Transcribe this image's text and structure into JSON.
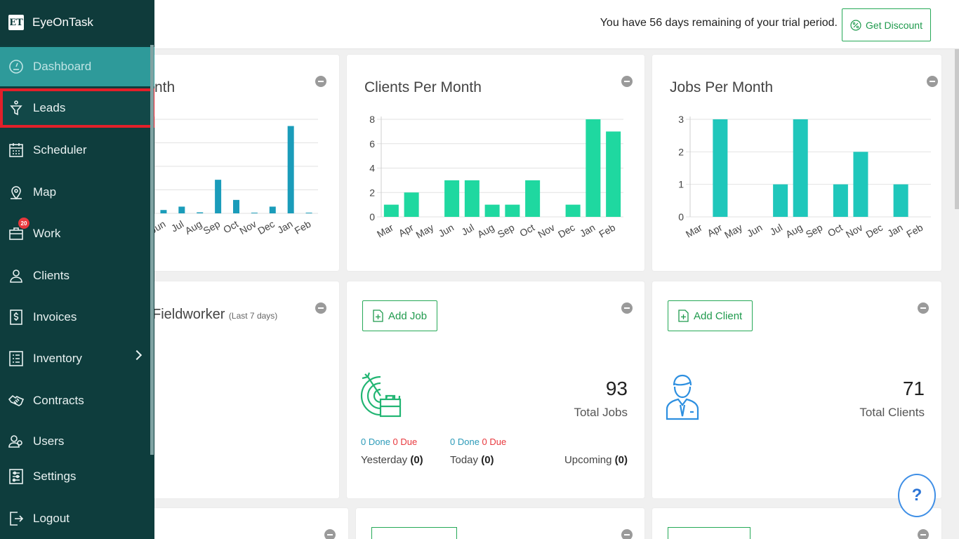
{
  "brand": {
    "logo": "ET",
    "name": "EyeOnTask"
  },
  "sidebar": {
    "items": [
      {
        "label": "Dashboard",
        "icon": "gauge-icon"
      },
      {
        "label": "Leads",
        "icon": "funnel-icon"
      },
      {
        "label": "Scheduler",
        "icon": "calendar-icon"
      },
      {
        "label": "Map",
        "icon": "map-pin-icon"
      },
      {
        "label": "Work",
        "icon": "briefcase-icon",
        "badge": "20"
      },
      {
        "label": "Clients",
        "icon": "user-icon"
      },
      {
        "label": "Invoices",
        "icon": "dollar-icon"
      },
      {
        "label": "Inventory",
        "icon": "list-icon"
      },
      {
        "label": "Contracts",
        "icon": "handshake-icon"
      },
      {
        "label": "Users",
        "icon": "users-icon"
      },
      {
        "label": "Settings",
        "icon": "sliders-icon"
      },
      {
        "label": "Logout",
        "icon": "logout-icon"
      }
    ]
  },
  "topbar": {
    "trial_text": "You have 56 days remaining of your trial period.",
    "discount_label": "Get Discount"
  },
  "cards": {
    "left_chart_title": "nth",
    "clients_title": "Clients Per Month",
    "jobs_title": "Jobs Per Month",
    "fieldworker_title": "Fieldworker",
    "fieldworker_sub": "(Last 7 days)",
    "add_job_label": "Add Job",
    "add_client_label": "Add Client",
    "total_jobs": "93",
    "total_jobs_label": "Total Jobs",
    "total_clients": "71",
    "total_clients_label": "Total Clients",
    "yesterday": {
      "done": "0 Done",
      "due": "0 Due",
      "label": "Yesterday",
      "count": "(0)"
    },
    "today": {
      "done": "0 Done",
      "due": "0 Due",
      "label": "Today",
      "count": "(0)"
    },
    "upcoming": {
      "label": "Upcoming",
      "count": "(0)"
    }
  },
  "help_label": "?",
  "colors": {
    "sidebar_bg": "#0e3d3d",
    "active_bg": "#2e9a9a",
    "accent_green": "#26a957",
    "bar_blue": "#1a9cba",
    "bar_green": "#1fd8a0",
    "bar_teal": "#1fc7bb"
  },
  "chart_data": [
    {
      "type": "bar",
      "title": "",
      "categories": [
        "Jun",
        "Jul",
        "Aug",
        "Sep",
        "Oct",
        "Nov",
        "Dec",
        "Jan",
        "Feb"
      ],
      "values": [
        1,
        2,
        0.3,
        10,
        4,
        0.2,
        2,
        26,
        0.2
      ],
      "ylim": [
        0,
        28
      ],
      "grid": true
    },
    {
      "type": "bar",
      "title": "Clients Per Month",
      "categories": [
        "Mar",
        "Apr",
        "May",
        "Jun",
        "Jul",
        "Aug",
        "Sep",
        "Oct",
        "Nov",
        "Dec",
        "Jan",
        "Feb"
      ],
      "values": [
        1,
        2,
        0,
        3,
        3,
        1,
        1,
        3,
        0,
        1,
        8,
        7
      ],
      "yticks": [
        0,
        2,
        4,
        6,
        8
      ],
      "ylim": [
        0,
        8
      ],
      "grid": true
    },
    {
      "type": "bar",
      "title": "Jobs Per Month",
      "categories": [
        "Mar",
        "Apr",
        "May",
        "Jun",
        "Jul",
        "Aug",
        "Sep",
        "Oct",
        "Nov",
        "Dec",
        "Jan",
        "Feb"
      ],
      "values": [
        0,
        3,
        0,
        0,
        1,
        3,
        0,
        1,
        2,
        0,
        1,
        0
      ],
      "yticks": [
        0,
        1,
        2,
        3
      ],
      "ylim": [
        0,
        3
      ],
      "grid": true
    }
  ]
}
